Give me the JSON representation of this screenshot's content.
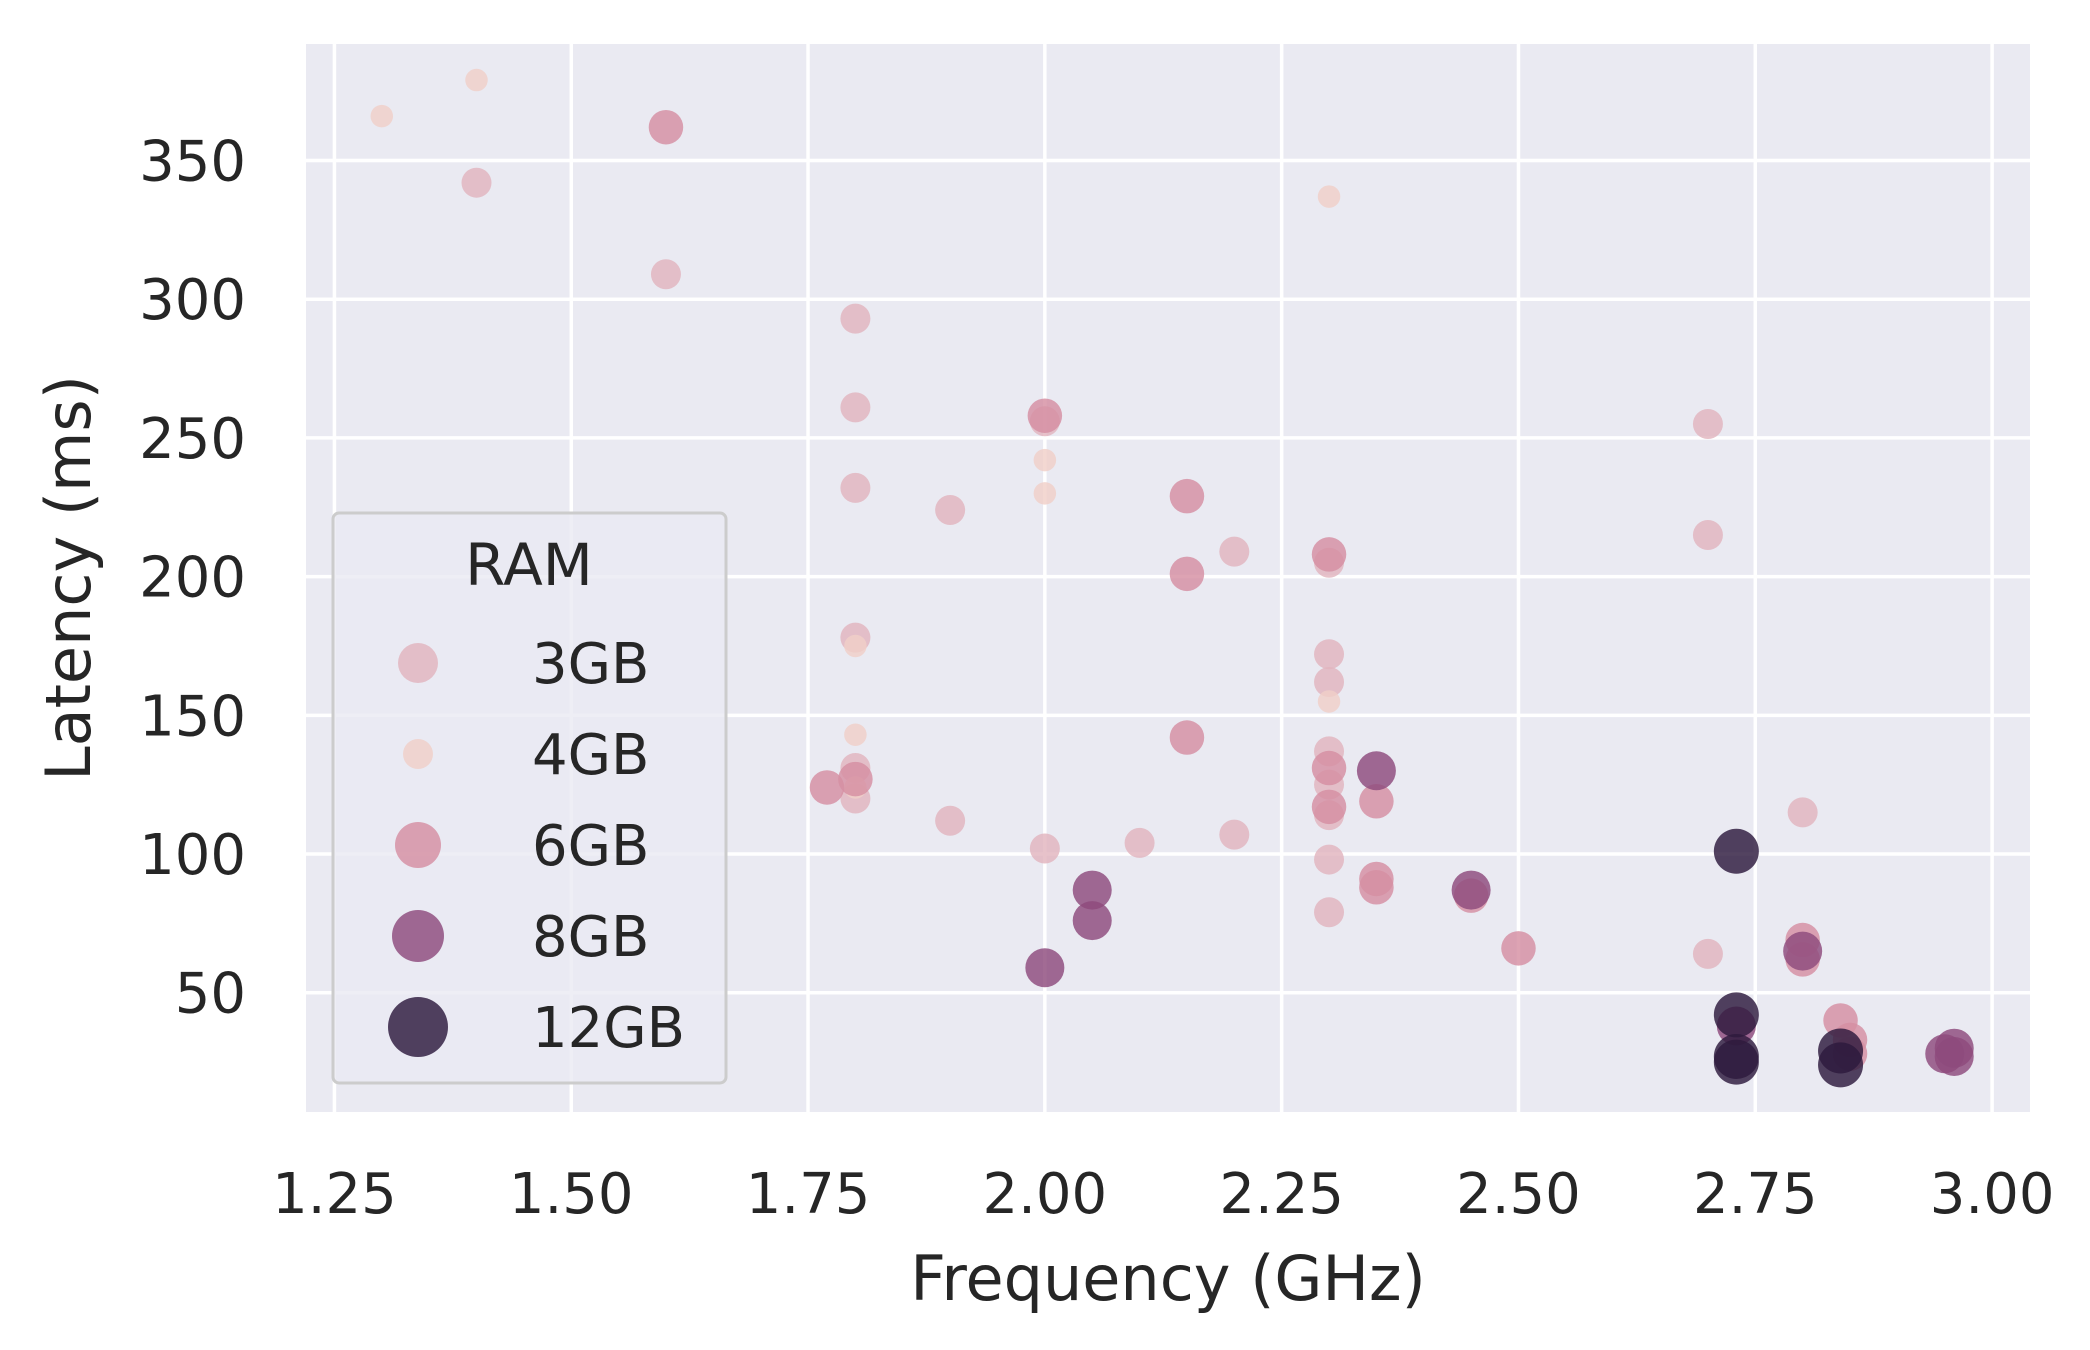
{
  "chart_data": {
    "type": "scatter",
    "title": "",
    "xlabel": "Frequency (GHz)",
    "ylabel": "Latency (ms)",
    "xlim": [
      1.22,
      3.04
    ],
    "ylim": [
      7,
      392
    ],
    "xticks": [
      "1.25",
      "1.50",
      "1.75",
      "2.00",
      "2.25",
      "2.50",
      "2.75",
      "3.00"
    ],
    "yticks": [
      "50",
      "100",
      "150",
      "200",
      "250",
      "300",
      "350"
    ],
    "grid": true,
    "legend": {
      "title": "RAM",
      "placement": "lower-left",
      "entries": [
        "3GB",
        "4GB",
        "6GB",
        "8GB",
        "12GB"
      ]
    },
    "series": [
      {
        "name": "3GB",
        "color": "#e2b4be",
        "size": 1.0,
        "points": [
          [
            1.4,
            342
          ],
          [
            1.6,
            309
          ],
          [
            1.8,
            293
          ],
          [
            1.8,
            261
          ],
          [
            1.8,
            232
          ],
          [
            1.8,
            178
          ],
          [
            1.8,
            131
          ],
          [
            1.8,
            120
          ],
          [
            1.9,
            224
          ],
          [
            1.9,
            112
          ],
          [
            2.0,
            256
          ],
          [
            2.0,
            102
          ],
          [
            2.1,
            104
          ],
          [
            2.2,
            209
          ],
          [
            2.2,
            107
          ],
          [
            2.3,
            205
          ],
          [
            2.3,
            172
          ],
          [
            2.3,
            162
          ],
          [
            2.3,
            137
          ],
          [
            2.3,
            125
          ],
          [
            2.3,
            114
          ],
          [
            2.3,
            98
          ],
          [
            2.3,
            79
          ],
          [
            2.7,
            255
          ],
          [
            2.7,
            215
          ],
          [
            2.7,
            64
          ],
          [
            2.8,
            115
          ]
        ]
      },
      {
        "name": "4GB",
        "color": "#f0d0c8",
        "size": 0.75,
        "points": [
          [
            1.3,
            366
          ],
          [
            1.4,
            379
          ],
          [
            1.8,
            175
          ],
          [
            1.8,
            143
          ],
          [
            1.8,
            124
          ],
          [
            2.0,
            242
          ],
          [
            2.0,
            230
          ],
          [
            2.3,
            337
          ],
          [
            2.3,
            155
          ]
        ]
      },
      {
        "name": "6GB",
        "color": "#d58fa2",
        "size": 1.15,
        "points": [
          [
            1.6,
            362
          ],
          [
            1.77,
            124
          ],
          [
            1.8,
            127
          ],
          [
            2.0,
            258
          ],
          [
            2.15,
            229
          ],
          [
            2.15,
            201
          ],
          [
            2.15,
            142
          ],
          [
            2.3,
            208
          ],
          [
            2.3,
            131
          ],
          [
            2.3,
            117
          ],
          [
            2.35,
            119
          ],
          [
            2.35,
            91
          ],
          [
            2.35,
            88
          ],
          [
            2.45,
            85
          ],
          [
            2.5,
            66
          ],
          [
            2.8,
            69
          ],
          [
            2.8,
            62
          ],
          [
            2.84,
            40
          ],
          [
            2.85,
            33
          ],
          [
            2.85,
            28
          ]
        ]
      },
      {
        "name": "8GB",
        "color": "#8e4a7d",
        "size": 1.3,
        "points": [
          [
            2.0,
            59
          ],
          [
            2.05,
            87
          ],
          [
            2.05,
            76
          ],
          [
            2.35,
            130
          ],
          [
            2.45,
            87
          ],
          [
            2.73,
            38
          ],
          [
            2.8,
            65
          ],
          [
            2.95,
            28
          ],
          [
            2.96,
            27
          ],
          [
            2.96,
            30
          ]
        ]
      },
      {
        "name": "12GB",
        "color": "#2d1a3d",
        "size": 1.5,
        "points": [
          [
            2.73,
            101
          ],
          [
            2.73,
            42
          ],
          [
            2.73,
            27
          ],
          [
            2.73,
            25
          ],
          [
            2.84,
            29
          ],
          [
            2.84,
            24
          ]
        ]
      }
    ]
  }
}
